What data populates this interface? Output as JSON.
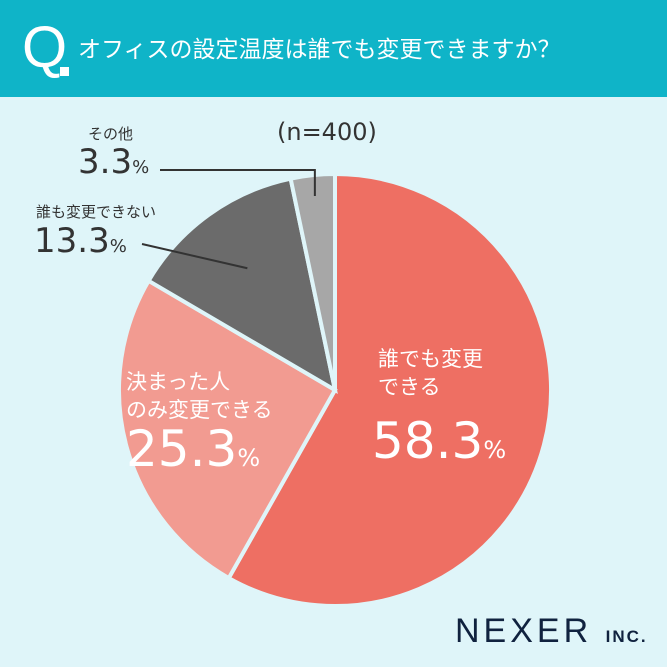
{
  "header": {
    "q": "Q",
    "title": "オフィスの設定温度は誰でも変更できますか？"
  },
  "chart_data": {
    "type": "pie",
    "title": "オフィスの設定温度は誰でも変更できますか？",
    "n_label": "(n=400)",
    "slices": [
      {
        "label": "誰でも変更できる",
        "value": 58.3,
        "display": "58.3",
        "color": "#ee6f63"
      },
      {
        "label": "決まった人のみ変更できる",
        "value": 25.3,
        "display": "25.3",
        "color": "#f29b91"
      },
      {
        "label": "誰も変更できない",
        "value": 13.3,
        "display": "13.3",
        "color": "#6b6b6b"
      },
      {
        "label": "その他",
        "value": 3.3,
        "display": "3.3",
        "color": "#a7a7a7"
      }
    ],
    "unit": "%"
  },
  "labels": {
    "s0_line1": "誰でも変更",
    "s0_line2": "できる",
    "s1_line1": "決まった人",
    "s1_line2": "のみ変更できる"
  },
  "logo": {
    "main": "NEXER",
    "suffix": "INC."
  }
}
